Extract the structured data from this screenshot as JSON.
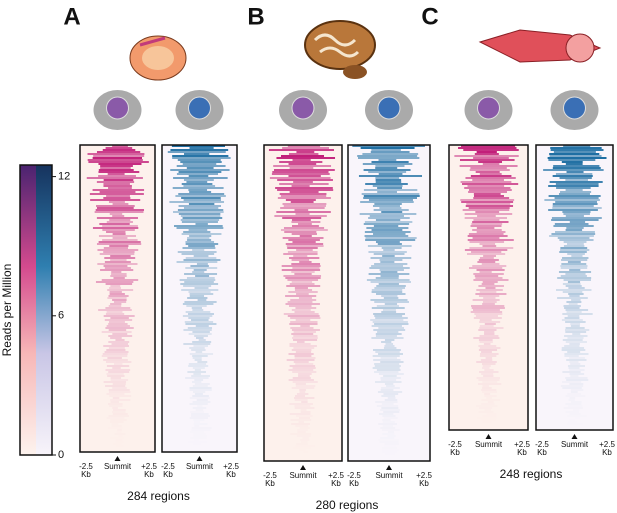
{
  "colorbar": {
    "label": "Reads per Million",
    "range": [
      0,
      12.5
    ],
    "ticks": [
      12,
      6,
      0
    ]
  },
  "panels": [
    {
      "label": "A",
      "regions": "284 regions",
      "x_labels": [
        "-2.5 Kb",
        "Summit",
        "+2.5 Kb"
      ]
    },
    {
      "label": "B",
      "regions": "280 regions",
      "x_labels": [
        "-2.5 Kb",
        "Summit",
        "+2.5 Kb"
      ]
    },
    {
      "label": "C",
      "regions": "248 regions",
      "x_labels": [
        "-2.5 Kb",
        "Summit",
        "+2.5 Kb"
      ]
    }
  ]
}
